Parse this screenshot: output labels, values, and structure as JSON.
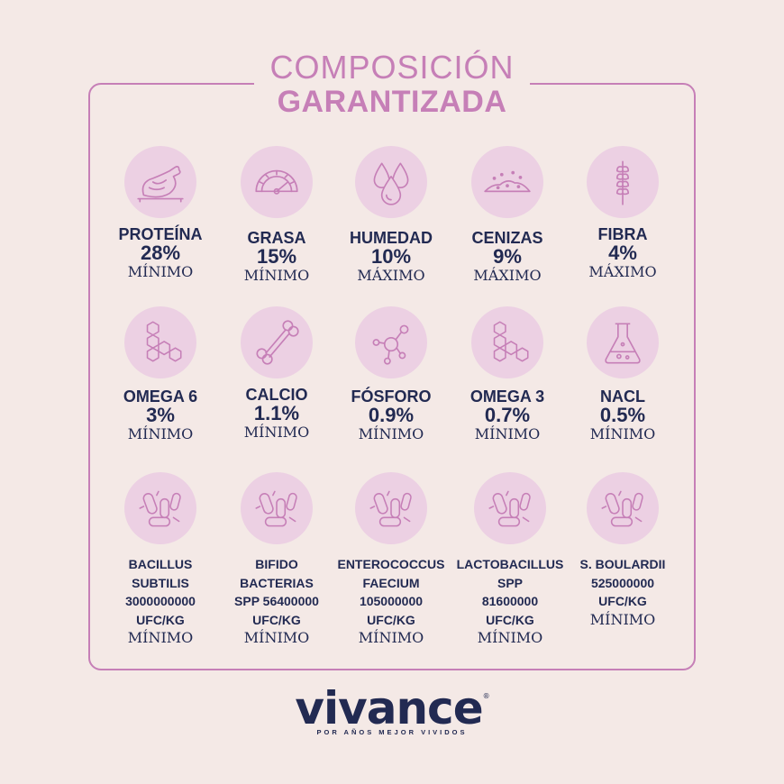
{
  "header": {
    "line1": "COMPOSICIÓN",
    "line2": "GARANTIZADA"
  },
  "row1": [
    {
      "icon": "chicken-icon",
      "name": "PROTEÍNA",
      "value": "28%",
      "qualifier": "MÍNIMO"
    },
    {
      "icon": "gauge-icon",
      "name": "GRASA",
      "value": "15%",
      "qualifier": "MÍNIMO"
    },
    {
      "icon": "droplets-icon",
      "name": "HUMEDAD",
      "value": "10%",
      "qualifier": "MÁXIMO"
    },
    {
      "icon": "ash-pile-icon",
      "name": "CENIZAS",
      "value": "9%",
      "qualifier": "MÁXIMO"
    },
    {
      "icon": "wheat-icon",
      "name": "FIBRA",
      "value": "4%",
      "qualifier": "MÁXIMO"
    }
  ],
  "row2": [
    {
      "icon": "molecule-rings-icon",
      "name": "OMEGA 6",
      "value": "3%",
      "qualifier": "MÍNIMO"
    },
    {
      "icon": "bone-icon",
      "name": "CALCIO",
      "value": "1.1%",
      "qualifier": "MÍNIMO"
    },
    {
      "icon": "atom-network-icon",
      "name": "FÓSFORO",
      "value": "0.9%",
      "qualifier": "MÍNIMO"
    },
    {
      "icon": "molecule-rings-icon",
      "name": "OMEGA 3",
      "value": "0.7%",
      "qualifier": "MÍNIMO"
    },
    {
      "icon": "flask-icon",
      "name": "NACL",
      "value": "0.5%",
      "qualifier": "MÍNIMO"
    }
  ],
  "row3": [
    {
      "icon": "bacteria-icon",
      "lines": [
        "BACILLUS",
        "SUBTILIS",
        "3000000000",
        "UFC/KG"
      ],
      "qualifier": "MÍNIMO"
    },
    {
      "icon": "bacteria-icon",
      "lines": [
        "BIFIDO",
        "BACTERIAS",
        "SPP 56400000",
        "UFC/KG"
      ],
      "qualifier": "MÍNIMO"
    },
    {
      "icon": "bacteria-icon",
      "lines": [
        "ENTEROCOCCUS",
        "FAECIUM",
        "105000000",
        "UFC/KG"
      ],
      "qualifier": "MÍNIMO"
    },
    {
      "icon": "bacteria-icon",
      "lines": [
        "LACTOBACILLUS",
        "SPP",
        "81600000",
        "UFC/KG"
      ],
      "qualifier": "MÍNIMO"
    },
    {
      "icon": "bacteria-icon",
      "lines": [
        "S. BOULARDII",
        "525000000",
        "UFC/KG"
      ],
      "qualifier": "MÍNIMO"
    }
  ],
  "brand": {
    "logo": "vivance",
    "mark": "®",
    "tagline": "POR AÑOS MEJOR VIVIDOS"
  },
  "colors": {
    "background": "#f4e9e6",
    "accent": "#c67fb7",
    "icon_circle": "#ecd0e3",
    "text": "#222a52"
  }
}
